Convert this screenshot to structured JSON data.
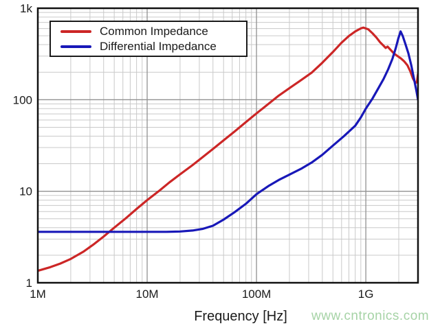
{
  "chart_data": {
    "type": "line",
    "title": "",
    "xlabel": "Frequency [Hz]",
    "ylabel": "",
    "x_scale": "log",
    "y_scale": "log",
    "xlim": [
      1000000,
      3000000000
    ],
    "ylim": [
      1,
      1000
    ],
    "grid": "log major and minor gridlines, on",
    "legend_position": "top-left inside plot, white box with black border",
    "x_ticks": [
      {
        "value": 1000000,
        "label": "1M"
      },
      {
        "value": 10000000,
        "label": "10M"
      },
      {
        "value": 100000000,
        "label": "100M"
      },
      {
        "value": 1000000000,
        "label": "1G"
      }
    ],
    "y_ticks": [
      {
        "value": 1,
        "label": "1"
      },
      {
        "value": 10,
        "label": "10"
      },
      {
        "value": 100,
        "label": "100"
      },
      {
        "value": 1000,
        "label": "1k"
      }
    ],
    "series": [
      {
        "name": "Common Impedance",
        "color": "#cc2626",
        "points": [
          [
            1000000.0,
            1.35
          ],
          [
            1300000.0,
            1.48
          ],
          [
            1600000.0,
            1.62
          ],
          [
            2000000.0,
            1.82
          ],
          [
            2600000.0,
            2.18
          ],
          [
            3200000.0,
            2.6
          ],
          [
            4000000.0,
            3.2
          ],
          [
            5000000.0,
            4.0
          ],
          [
            6300000.0,
            5.0
          ],
          [
            8000000.0,
            6.4
          ],
          [
            10000000.0,
            8.0
          ],
          [
            13000000.0,
            10.2
          ],
          [
            16000000.0,
            12.5
          ],
          [
            20000000.0,
            15.3
          ],
          [
            26000000.0,
            19.3
          ],
          [
            32000000.0,
            23.5
          ],
          [
            40000000.0,
            29
          ],
          [
            50000000.0,
            36
          ],
          [
            63000000.0,
            45
          ],
          [
            80000000.0,
            57
          ],
          [
            100000000.0,
            71
          ],
          [
            130000000.0,
            91
          ],
          [
            160000000.0,
            111
          ],
          [
            200000000.0,
            134
          ],
          [
            250000000.0,
            161
          ],
          [
            320000000.0,
            198
          ],
          [
            400000000.0,
            254
          ],
          [
            500000000.0,
            332
          ],
          [
            600000000.0,
            420
          ],
          [
            700000000.0,
            498
          ],
          [
            800000000.0,
            558
          ],
          [
            900000000.0,
            602
          ],
          [
            950000000.0,
            614
          ],
          [
            1050000000.0,
            590
          ],
          [
            1150000000.0,
            532
          ],
          [
            1250000000.0,
            478
          ],
          [
            1350000000.0,
            425
          ],
          [
            1450000000.0,
            390
          ],
          [
            1520000000.0,
            368
          ],
          [
            1580000000.0,
            381
          ],
          [
            1680000000.0,
            352
          ],
          [
            1800000000.0,
            322
          ],
          [
            1950000000.0,
            300
          ],
          [
            2100000000.0,
            282
          ],
          [
            2250000000.0,
            262
          ],
          [
            2400000000.0,
            238
          ],
          [
            2550000000.0,
            204
          ],
          [
            2700000000.0,
            170
          ],
          [
            2850000000.0,
            152
          ],
          [
            2930000000.0,
            156
          ],
          [
            3000000000.0,
            192
          ]
        ]
      },
      {
        "name": "Differential Impedance",
        "color": "#1818b8",
        "points": [
          [
            1000000.0,
            3.6
          ],
          [
            2000000.0,
            3.6
          ],
          [
            4000000.0,
            3.6
          ],
          [
            7000000.0,
            3.6
          ],
          [
            10000000.0,
            3.6
          ],
          [
            15000000.0,
            3.6
          ],
          [
            20000000.0,
            3.63
          ],
          [
            26000000.0,
            3.72
          ],
          [
            32000000.0,
            3.87
          ],
          [
            40000000.0,
            4.2
          ],
          [
            50000000.0,
            4.9
          ],
          [
            63000000.0,
            5.9
          ],
          [
            80000000.0,
            7.3
          ],
          [
            100000000.0,
            9.3
          ],
          [
            130000000.0,
            11.5
          ],
          [
            160000000.0,
            13.3
          ],
          [
            200000000.0,
            15.2
          ],
          [
            260000000.0,
            17.8
          ],
          [
            320000000.0,
            20.6
          ],
          [
            400000000.0,
            25
          ],
          [
            500000000.0,
            31.5
          ],
          [
            630000000.0,
            40
          ],
          [
            800000000.0,
            52
          ],
          [
            900000000.0,
            64
          ],
          [
            1000000000.0,
            80
          ],
          [
            1150000000.0,
            103
          ],
          [
            1300000000.0,
            133
          ],
          [
            1450000000.0,
            168
          ],
          [
            1600000000.0,
            215
          ],
          [
            1750000000.0,
            280
          ],
          [
            1880000000.0,
            368
          ],
          [
            1980000000.0,
            465
          ],
          [
            2080000000.0,
            558
          ],
          [
            2180000000.0,
            495
          ],
          [
            2300000000.0,
            408
          ],
          [
            2450000000.0,
            322
          ],
          [
            2600000000.0,
            240
          ],
          [
            2750000000.0,
            172
          ],
          [
            2900000000.0,
            125
          ],
          [
            3000000000.0,
            100
          ]
        ]
      }
    ]
  },
  "watermark": {
    "text": "www.cntronics.com",
    "color": "#a6d3a6"
  }
}
